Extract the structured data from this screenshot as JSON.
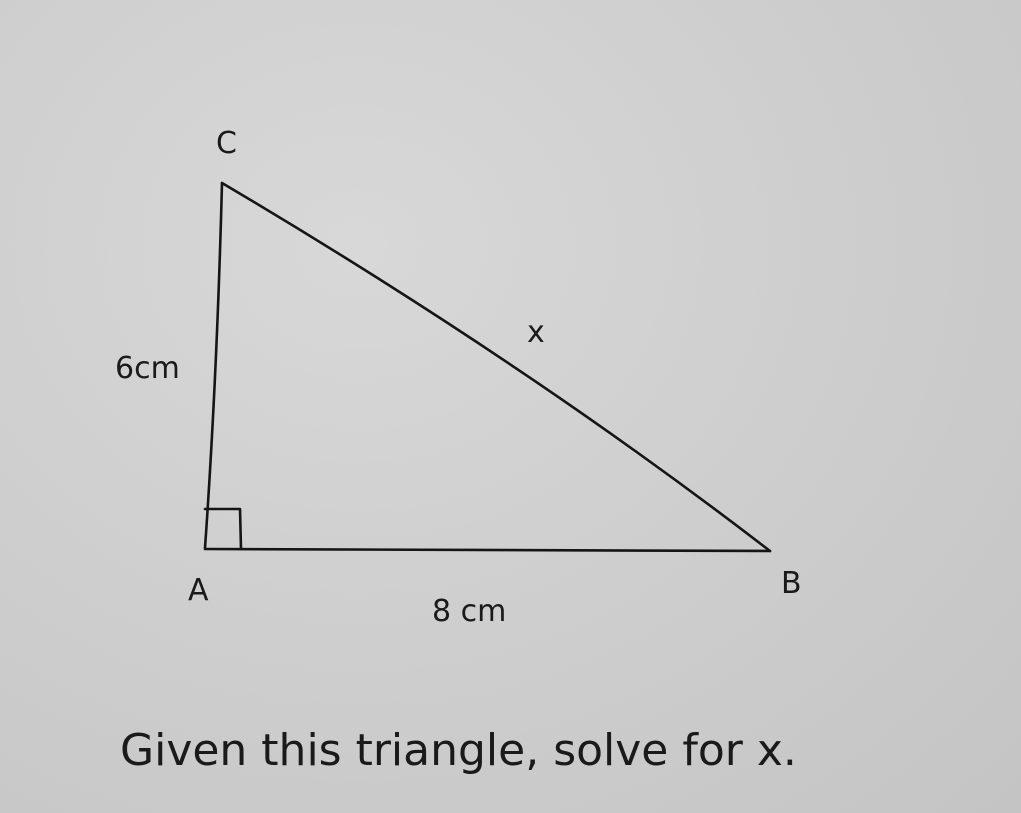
{
  "diagram": {
    "vertex_labels": {
      "a": "A",
      "b": "B",
      "c": "C"
    },
    "side_labels": {
      "ac": "6cm",
      "ab": "8 cm",
      "bc": "x"
    },
    "right_angle_at": "A"
  },
  "question": "Given this triangle, solve for x."
}
